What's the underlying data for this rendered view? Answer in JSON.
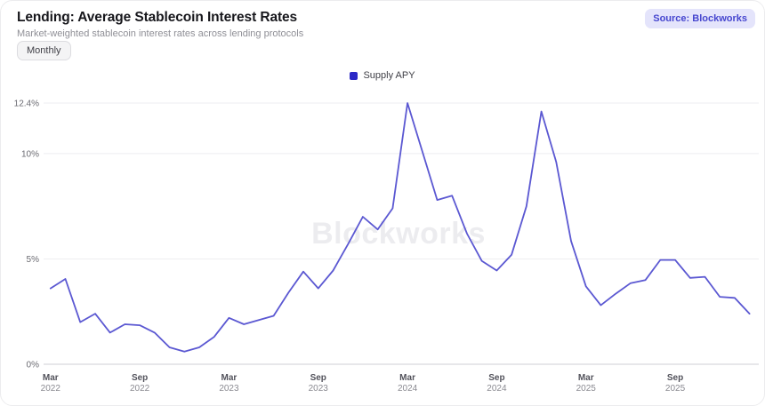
{
  "header": {
    "title": "Lending: Average Stablecoin Interest Rates",
    "subtitle": "Market-weighted stablecoin interest rates across lending protocols",
    "frequency_button": "Monthly",
    "source_badge": "Source: Blockworks"
  },
  "legend": {
    "items": [
      {
        "label": "Supply APY",
        "color": "#2b28c6"
      }
    ]
  },
  "watermark": "Blockworks",
  "colors": {
    "line": "#5b58d2",
    "gridline": "#ededf0",
    "zero_line": "#cfcfd4",
    "y_label": "#6b6b72",
    "x_month_label": "#52525b",
    "x_year_label": "#8a8a91",
    "watermark": "#ececef"
  },
  "chart_data": {
    "type": "line",
    "title": "Lending: Average Stablecoin Interest Rates",
    "subtitle": "Market-weighted stablecoin interest rates across lending protocols",
    "frequency": "Monthly",
    "grid": "horizontal",
    "legend_position": "top-center",
    "ylim": [
      0,
      12.4
    ],
    "yticks": [
      {
        "value": 0,
        "label": "0%"
      },
      {
        "value": 5,
        "label": "5%"
      },
      {
        "value": 10,
        "label": "10%"
      },
      {
        "value": 12.4,
        "label": "12.4%"
      }
    ],
    "xtick_indices": [
      0,
      6,
      12,
      18,
      24,
      30,
      36,
      42
    ],
    "x": [
      "Mar 2022",
      "Apr 2022",
      "May 2022",
      "Jun 2022",
      "Jul 2022",
      "Aug 2022",
      "Sep 2022",
      "Oct 2022",
      "Nov 2022",
      "Dec 2022",
      "Jan 2023",
      "Feb 2023",
      "Mar 2023",
      "Apr 2023",
      "May 2023",
      "Jun 2023",
      "Jul 2023",
      "Aug 2023",
      "Sep 2023",
      "Oct 2023",
      "Nov 2023",
      "Dec 2023",
      "Jan 2024",
      "Feb 2024",
      "Mar 2024",
      "Apr 2024",
      "May 2024",
      "Jun 2024",
      "Jul 2024",
      "Aug 2024",
      "Sep 2024",
      "Oct 2024",
      "Nov 2024",
      "Dec 2024",
      "Jan 2025",
      "Feb 2025",
      "Mar 2025",
      "Apr 2025",
      "May 2025",
      "Jun 2025",
      "Jul 2025",
      "Aug 2025",
      "Sep 2025",
      "Oct 2025",
      "Nov 2025",
      "Dec 2025",
      "Jan 2026",
      "Feb 2026"
    ],
    "series": [
      {
        "name": "Supply APY",
        "unit": "%",
        "values": [
          3.6,
          4.05,
          2.0,
          2.4,
          1.5,
          1.9,
          1.85,
          1.5,
          0.8,
          0.6,
          0.8,
          1.3,
          2.2,
          1.9,
          2.1,
          2.3,
          3.4,
          4.4,
          3.6,
          4.45,
          5.7,
          7.0,
          6.4,
          7.4,
          12.4,
          10.1,
          7.8,
          8.0,
          6.2,
          4.9,
          4.45,
          5.2,
          7.5,
          12.0,
          9.6,
          5.85,
          3.7,
          2.8,
          3.35,
          3.85,
          4.0,
          4.95,
          4.95,
          4.1,
          4.15,
          3.2,
          3.15,
          2.4
        ]
      }
    ]
  }
}
